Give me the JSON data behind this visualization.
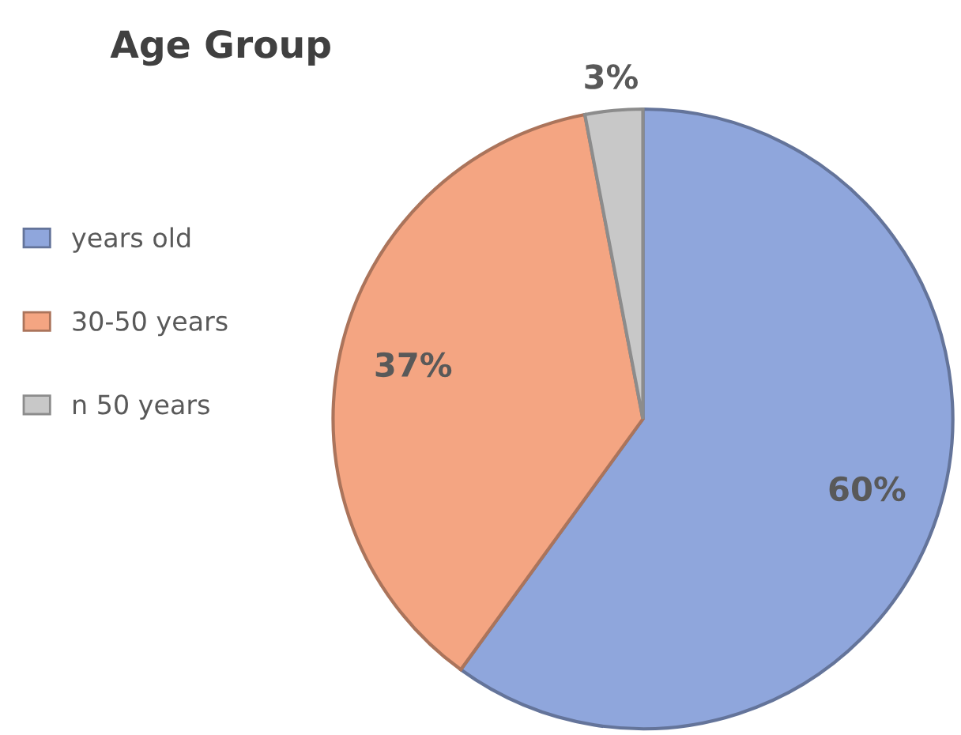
{
  "chart_data": {
    "type": "pie",
    "title": "Age Group",
    "categories": [
      "years old",
      "30-50 years",
      "n 50 years"
    ],
    "values": [
      60,
      37,
      3
    ],
    "colors": [
      "#8fa6dc",
      "#f4a582",
      "#c8c8c8"
    ],
    "value_labels": [
      "60%",
      "37%",
      "3%"
    ],
    "legend": "left"
  }
}
